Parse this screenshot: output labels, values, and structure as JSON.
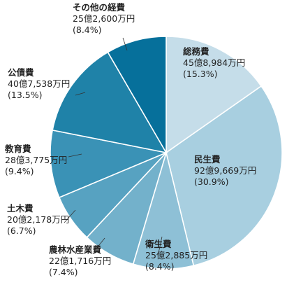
{
  "chart_data": {
    "type": "pie",
    "slices": [
      {
        "name": "総務費",
        "amount": "45億8,984万円",
        "percent_label": "(15.3%)",
        "value": 15.3,
        "color": "#c5dde9"
      },
      {
        "name": "民生費",
        "amount": "92億9,669万円",
        "percent_label": "(30.9%)",
        "value": 30.9,
        "color": "#a8cfe0"
      },
      {
        "name": "衛生費",
        "amount": "25億2,885万円",
        "percent_label": "(8.4%)",
        "value": 8.4,
        "color": "#8ec0d6"
      },
      {
        "name": "農林水産業費",
        "amount": "22億1,716万円",
        "percent_label": "(7.4%)",
        "value": 7.4,
        "color": "#73b1cb"
      },
      {
        "name": "土木費",
        "amount": "20億2,178万円",
        "percent_label": "(6.7%)",
        "value": 6.7,
        "color": "#57a2c1"
      },
      {
        "name": "教育費",
        "amount": "28億3,775万円",
        "percent_label": "(9.4%)",
        "value": 9.4,
        "color": "#3a92b6"
      },
      {
        "name": "公債費",
        "amount": "40億7,538万円",
        "percent_label": "(13.5%)",
        "value": 13.5,
        "color": "#1f82a8"
      },
      {
        "name": "その他の経費",
        "amount": "25億2,600万円",
        "percent_label": "(8.4%)",
        "value": 8.4,
        "color": "#06709b"
      }
    ]
  }
}
